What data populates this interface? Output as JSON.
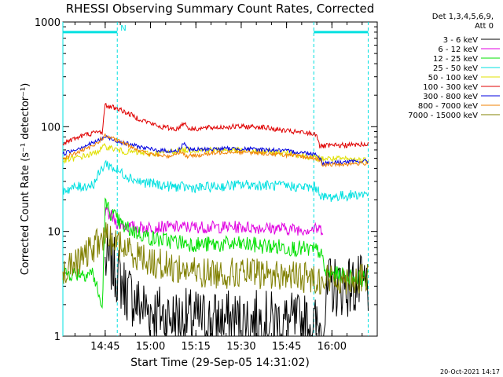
{
  "chart_data": {
    "type": "line",
    "title": "RHESSI Observing Summary Count Rates, Corrected",
    "xlabel": "Start Time (29-Sep-05 14:31:02)",
    "ylabel": "Corrected Count Rate (s⁻¹ detector⁻¹)",
    "yscale": "log",
    "ylim": [
      1,
      1000
    ],
    "xlim_minutes": [
      0,
      104
    ],
    "x_ticks": [
      {
        "label": "14:45",
        "minute": 14
      },
      {
        "label": "15:00",
        "minute": 29
      },
      {
        "label": "15:15",
        "minute": 44
      },
      {
        "label": "15:30",
        "minute": 59
      },
      {
        "label": "15:45",
        "minute": 74
      },
      {
        "label": "16:00",
        "minute": 89
      }
    ],
    "y_ticks": [
      {
        "label": "1",
        "value": 1
      },
      {
        "label": "10",
        "value": 10
      },
      {
        "label": "100",
        "value": 100
      },
      {
        "label": "1000",
        "value": 1000
      }
    ],
    "legend_header": [
      "Det 1,3,4,5,6,9,",
      "Att 0"
    ],
    "night_label": "N",
    "night_bars": [
      [
        0,
        18
      ],
      [
        83,
        101
      ]
    ],
    "night_bar_level": 800,
    "series": [
      {
        "name": "3 - 6 keV",
        "color": "#000000",
        "noise": 0.3,
        "points": [
          [
            14,
            5
          ],
          [
            16,
            5
          ],
          [
            18,
            4
          ],
          [
            20,
            3
          ],
          [
            25,
            2
          ],
          [
            35,
            1.5
          ],
          [
            50,
            1.4
          ],
          [
            65,
            1.4
          ],
          [
            80,
            1.3
          ],
          [
            86,
            1.2
          ],
          [
            88,
            3
          ],
          [
            95,
            3
          ],
          [
            101,
            3
          ]
        ]
      },
      {
        "name": "6 - 12 keV",
        "color": "#e000e0",
        "noise": 0.06,
        "points": [
          [
            14,
            15
          ],
          [
            16,
            14
          ],
          [
            18,
            12
          ],
          [
            22,
            11
          ],
          [
            35,
            11
          ],
          [
            60,
            11
          ],
          [
            78,
            10.5
          ],
          [
            86,
            10.5
          ]
        ]
      },
      {
        "name": "12 - 25 keV",
        "color": "#00e000",
        "noise": 0.08,
        "points": [
          [
            0,
            4
          ],
          [
            5,
            4
          ],
          [
            10,
            4
          ],
          [
            13,
            1.8
          ],
          [
            14,
            18
          ],
          [
            16,
            15
          ],
          [
            20,
            11
          ],
          [
            30,
            8.5
          ],
          [
            45,
            7.5
          ],
          [
            60,
            7.5
          ],
          [
            75,
            7
          ],
          [
            85,
            6.5
          ],
          [
            87,
            4
          ],
          [
            101,
            3.5
          ]
        ]
      },
      {
        "name": "25 - 50 keV",
        "color": "#00e0e0",
        "noise": 0.05,
        "points": [
          [
            0,
            25
          ],
          [
            10,
            28
          ],
          [
            14,
            45
          ],
          [
            18,
            38
          ],
          [
            25,
            30
          ],
          [
            35,
            27
          ],
          [
            45,
            26
          ],
          [
            60,
            28
          ],
          [
            75,
            27
          ],
          [
            84,
            26
          ],
          [
            86,
            21
          ],
          [
            101,
            23
          ]
        ]
      },
      {
        "name": "50 - 100 keV",
        "color": "#e0e000",
        "noise": 0.03,
        "points": [
          [
            0,
            47
          ],
          [
            10,
            55
          ],
          [
            14,
            65
          ],
          [
            20,
            58
          ],
          [
            30,
            55
          ],
          [
            40,
            60
          ],
          [
            55,
            60
          ],
          [
            75,
            56
          ],
          [
            84,
            50
          ],
          [
            101,
            48
          ]
        ]
      },
      {
        "name": "100 - 300 keV",
        "color": "#e00000",
        "noise": 0.025,
        "points": [
          [
            0,
            70
          ],
          [
            8,
            85
          ],
          [
            13,
            90
          ],
          [
            14,
            160
          ],
          [
            18,
            150
          ],
          [
            25,
            120
          ],
          [
            32,
            100
          ],
          [
            38,
            95
          ],
          [
            40,
            110
          ],
          [
            42,
            95
          ],
          [
            55,
            100
          ],
          [
            65,
            100
          ],
          [
            75,
            90
          ],
          [
            84,
            85
          ],
          [
            85,
            65
          ],
          [
            101,
            68
          ]
        ]
      },
      {
        "name": "300 - 800 keV",
        "color": "#0000e0",
        "noise": 0.02,
        "points": [
          [
            0,
            55
          ],
          [
            10,
            70
          ],
          [
            14,
            80
          ],
          [
            20,
            70
          ],
          [
            30,
            60
          ],
          [
            38,
            58
          ],
          [
            40,
            70
          ],
          [
            42,
            60
          ],
          [
            55,
            62
          ],
          [
            70,
            60
          ],
          [
            84,
            55
          ],
          [
            86,
            45
          ],
          [
            101,
            47
          ]
        ]
      },
      {
        "name": "800 - 7000 keV",
        "color": "#f08000",
        "noise": 0.02,
        "points": [
          [
            0,
            50
          ],
          [
            10,
            65
          ],
          [
            14,
            82
          ],
          [
            20,
            70
          ],
          [
            28,
            55
          ],
          [
            35,
            52
          ],
          [
            39,
            58
          ],
          [
            41,
            52
          ],
          [
            55,
            58
          ],
          [
            70,
            55
          ],
          [
            84,
            50
          ],
          [
            86,
            43
          ],
          [
            101,
            45
          ]
        ]
      },
      {
        "name": "7000 - 15000 keV",
        "color": "#808000",
        "noise": 0.15,
        "points": [
          [
            0,
            4
          ],
          [
            5,
            5
          ],
          [
            10,
            7
          ],
          [
            14,
            9
          ],
          [
            20,
            7
          ],
          [
            30,
            5
          ],
          [
            45,
            4
          ],
          [
            60,
            4
          ],
          [
            75,
            3.8
          ],
          [
            85,
            3.5
          ],
          [
            101,
            3.5
          ]
        ]
      }
    ]
  },
  "footer_date": "20-Oct-2021 14:17"
}
